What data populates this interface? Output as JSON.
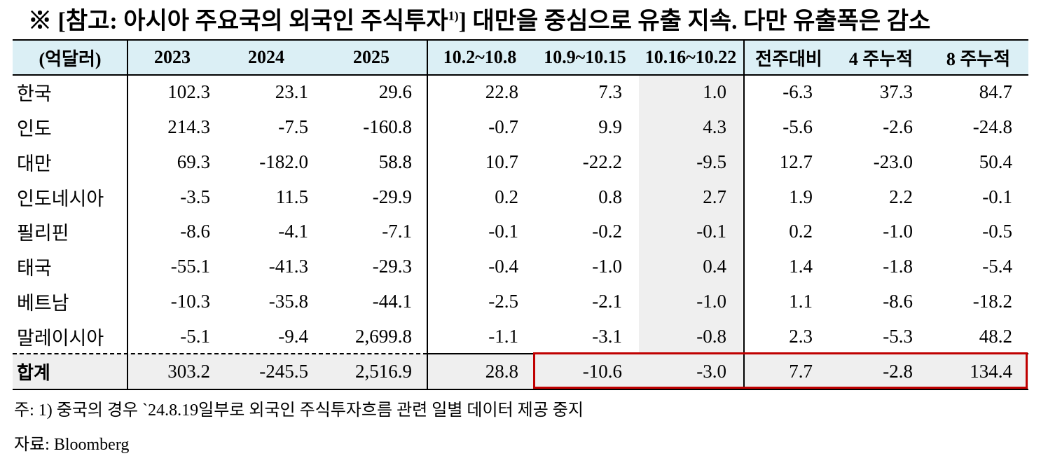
{
  "title": {
    "prefix": "※ [참고: 아시아 주요국의 외국인 주식투자",
    "sup": "1)",
    "suffix": "] 대만을 중심으로 유출 지속. 다만 유출폭은 감소"
  },
  "table": {
    "header": [
      "(억달러)",
      "2023",
      "2024",
      "2025",
      "10.2~10.8",
      "10.9~10.15",
      "10.16~10.22",
      "전주대비",
      "4 주누적",
      "8 주누적"
    ],
    "rows": [
      [
        "한국",
        "102.3",
        "23.1",
        "29.6",
        "22.8",
        "7.3",
        "1.0",
        "-6.3",
        "37.3",
        "84.7"
      ],
      [
        "인도",
        "214.3",
        "-7.5",
        "-160.8",
        "-0.7",
        "9.9",
        "4.3",
        "-5.6",
        "-2.6",
        "-24.8"
      ],
      [
        "대만",
        "69.3",
        "-182.0",
        "58.8",
        "10.7",
        "-22.2",
        "-9.5",
        "12.7",
        "-23.0",
        "50.4"
      ],
      [
        "인도네시아",
        "-3.5",
        "11.5",
        "-29.9",
        "0.2",
        "0.8",
        "2.7",
        "1.9",
        "2.2",
        "-0.1"
      ],
      [
        "필리핀",
        "-8.6",
        "-4.1",
        "-7.1",
        "-0.1",
        "-0.2",
        "-0.1",
        "0.2",
        "-1.0",
        "-0.5"
      ],
      [
        "태국",
        "-55.1",
        "-41.3",
        "-29.3",
        "-0.4",
        "-1.0",
        "0.4",
        "1.4",
        "-1.8",
        "-5.4"
      ],
      [
        "베트남",
        "-10.3",
        "-35.8",
        "-44.1",
        "-2.5",
        "-2.1",
        "-1.0",
        "1.1",
        "-8.6",
        "-18.2"
      ],
      [
        "말레이시아",
        "-5.1",
        "-9.4",
        "2,699.8",
        "-1.1",
        "-3.1",
        "-0.8",
        "2.3",
        "-5.3",
        "48.2"
      ]
    ],
    "total": [
      "합계",
      "303.2",
      "-245.5",
      "2,516.9",
      "28.8",
      "-10.6",
      "-3.0",
      "7.7",
      "-2.8",
      "134.4"
    ]
  },
  "note": "주: 1) 중국의 경우 `24.8.19일부로 외국인 주식투자흐름 관련 일별 데이터 제공 중지",
  "source": "자료: Bloomberg"
}
